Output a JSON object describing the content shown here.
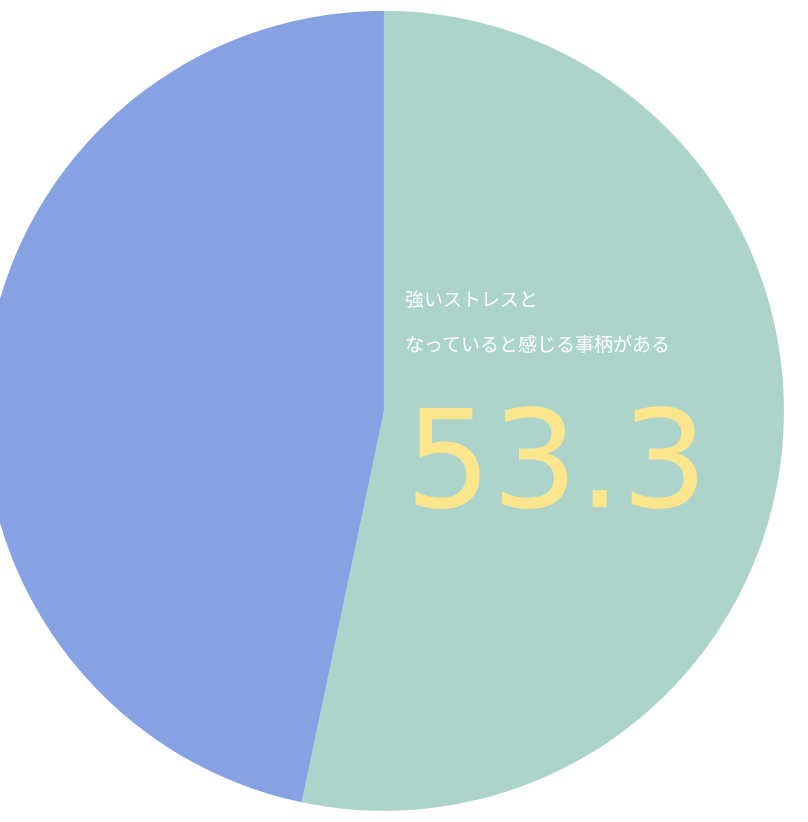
{
  "chart_data": {
    "type": "pie",
    "slices": [
      {
        "value": 53.3,
        "value_label": "53.3",
        "label_lines": [
          "強いストレスと",
          "なっていると感じる事柄がある"
        ],
        "color": "#acd4cb",
        "exploded": true
      },
      {
        "value": 46.7,
        "color": "#87a2e2",
        "exploded": false
      }
    ],
    "value_label_color": "#fbe68e"
  }
}
